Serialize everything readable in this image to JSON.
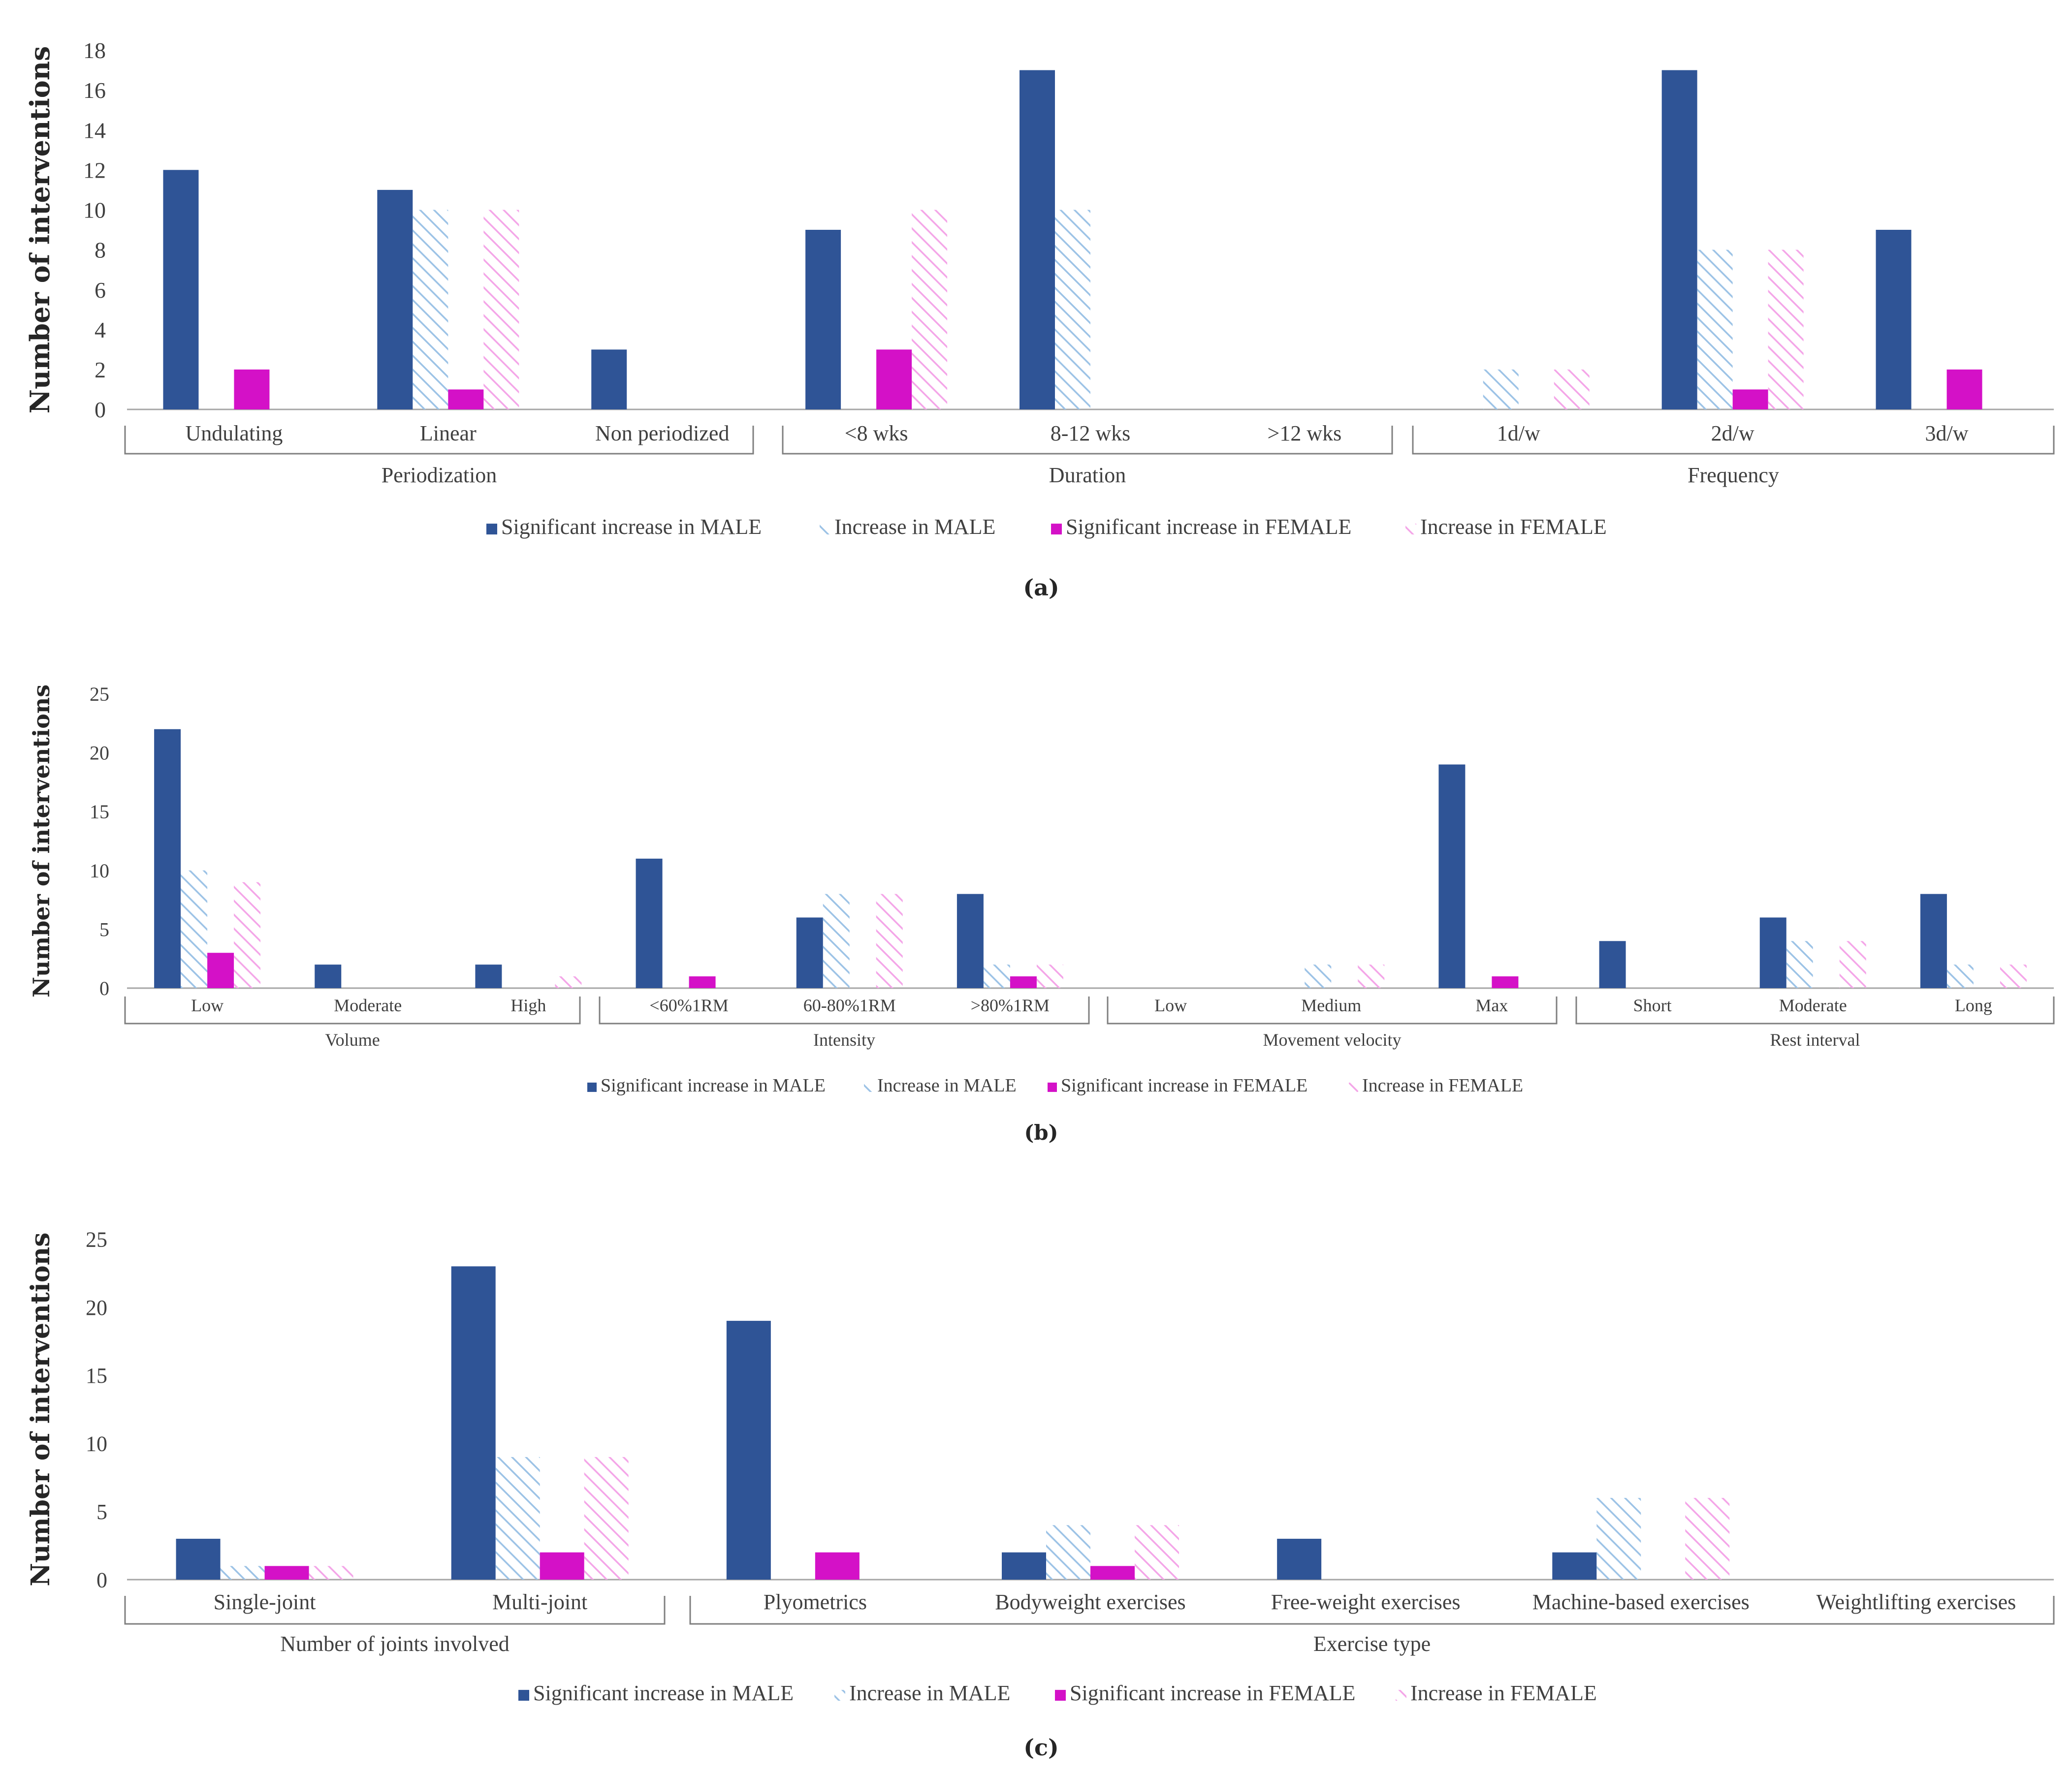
{
  "legend": {
    "labels": [
      "Significant increase in MALE",
      "Increase in MALE",
      "Significant increase in FEMALE",
      "Increase in FEMALE"
    ]
  },
  "colors": {
    "sig_male": "#2F5496",
    "inc_male": "#9DC3E6",
    "sig_female": "#D411C7",
    "inc_female": "#F4A6E8",
    "axis": "#A6A6A6",
    "text": "#404040"
  },
  "chart_data": [
    {
      "type": "bar",
      "caption": "(a)",
      "ylabel": "Number of interventions",
      "ylim": [
        0,
        18
      ],
      "yticks": [
        0,
        2,
        4,
        6,
        8,
        10,
        12,
        14,
        16,
        18
      ],
      "groups": [
        {
          "label": "Periodization",
          "categories": [
            "Undulating",
            "Linear",
            "Non periodized"
          ]
        },
        {
          "label": "Duration",
          "categories": [
            "<8 wks",
            "8-12 wks",
            ">12 wks"
          ]
        },
        {
          "label": "Frequency",
          "categories": [
            "1d/w",
            "2d/w",
            "3d/w"
          ]
        }
      ],
      "series": [
        {
          "name": "Significant increase in MALE",
          "values": [
            12,
            11,
            3,
            9,
            17,
            0,
            0,
            17,
            9
          ]
        },
        {
          "name": "Increase in MALE",
          "values": [
            0,
            10,
            0,
            0,
            10,
            0,
            2,
            8,
            0
          ]
        },
        {
          "name": "Significant increase in FEMALE",
          "values": [
            2,
            1,
            0,
            3,
            0,
            0,
            0,
            1,
            2
          ]
        },
        {
          "name": "Increase in FEMALE",
          "values": [
            0,
            10,
            0,
            10,
            0,
            0,
            2,
            8,
            0
          ]
        }
      ]
    },
    {
      "type": "bar",
      "caption": "(b)",
      "ylabel": "Number of interventions",
      "ylim": [
        0,
        25
      ],
      "yticks": [
        0,
        5,
        10,
        15,
        20,
        25
      ],
      "groups": [
        {
          "label": "Volume",
          "categories": [
            "Low",
            "Moderate",
            "High"
          ]
        },
        {
          "label": "Intensity",
          "categories": [
            "<60%1RM",
            "60-80%1RM",
            ">80%1RM"
          ]
        },
        {
          "label": "Movement velocity",
          "categories": [
            "Low",
            "Medium",
            "Max"
          ]
        },
        {
          "label": "Rest interval",
          "categories": [
            "Short",
            "Moderate",
            "Long"
          ]
        }
      ],
      "series": [
        {
          "name": "Significant increase in MALE",
          "values": [
            22,
            2,
            2,
            11,
            6,
            8,
            0,
            0,
            19,
            4,
            6,
            8
          ]
        },
        {
          "name": "Increase in MALE",
          "values": [
            10,
            0,
            0,
            0,
            8,
            2,
            0,
            2,
            0,
            0,
            4,
            2
          ]
        },
        {
          "name": "Significant increase in FEMALE",
          "values": [
            3,
            0,
            0,
            1,
            0,
            1,
            0,
            0,
            1,
            0,
            0,
            0
          ]
        },
        {
          "name": "Increase in FEMALE",
          "values": [
            9,
            0,
            1,
            0,
            8,
            2,
            0,
            2,
            0,
            0,
            4,
            2
          ]
        }
      ]
    },
    {
      "type": "bar",
      "caption": "(c)",
      "ylabel": "Number of interventions",
      "ylim": [
        0,
        25
      ],
      "yticks": [
        0,
        5,
        10,
        15,
        20,
        25
      ],
      "groups": [
        {
          "label": "Number of joints involved",
          "categories": [
            "Single-joint",
            "Multi-joint"
          ]
        },
        {
          "label": "Exercise type",
          "categories": [
            "Plyometrics",
            "Bodyweight exercises",
            "Free-weight exercises",
            "Machine-based exercises",
            "Weightlifting exercises"
          ]
        }
      ],
      "series": [
        {
          "name": "Significant increase in MALE",
          "values": [
            3,
            23,
            19,
            2,
            3,
            2,
            0
          ]
        },
        {
          "name": "Increase in MALE",
          "values": [
            1,
            9,
            0,
            4,
            0,
            6,
            0
          ]
        },
        {
          "name": "Significant increase in FEMALE",
          "values": [
            1,
            2,
            2,
            1,
            0,
            0,
            0
          ]
        },
        {
          "name": "Increase in FEMALE",
          "values": [
            1,
            9,
            0,
            4,
            0,
            6,
            0
          ]
        }
      ]
    }
  ]
}
